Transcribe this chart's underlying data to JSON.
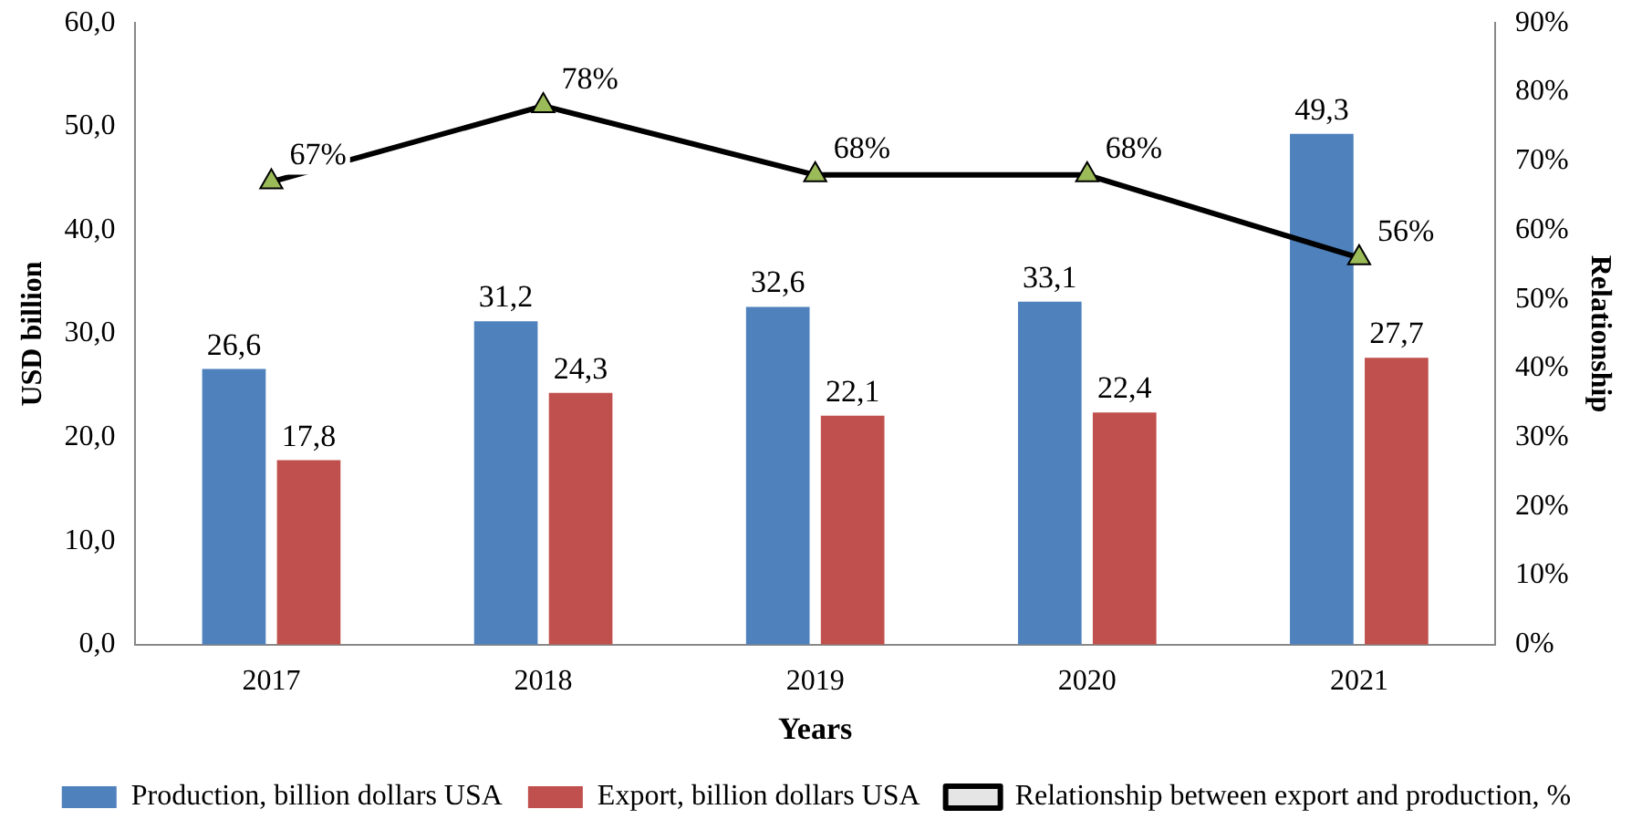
{
  "chart_data": {
    "type": "bar",
    "xlabel": "Years",
    "ylabel": "USD billion",
    "y2label": "Relationship",
    "categories": [
      "2017",
      "2018",
      "2019",
      "2020",
      "2021"
    ],
    "series": [
      {
        "name": "Production, billion dollars USA",
        "color": "#4f81bd",
        "values": [
          26.6,
          31.2,
          32.6,
          33.1,
          49.3
        ],
        "value_labels": [
          "26,6",
          "31,2",
          "32,6",
          "33,1",
          "49,3"
        ]
      },
      {
        "name": "Export, billion dollars USA",
        "color": "#c0504d",
        "values": [
          17.8,
          24.3,
          22.1,
          22.4,
          27.7
        ],
        "value_labels": [
          "17,8",
          "24,3",
          "22,1",
          "22,4",
          "27,7"
        ]
      },
      {
        "name": "Relationship between export and production, %",
        "type": "line",
        "axis": "y2",
        "color": "#000000",
        "marker": "triangle",
        "values": [
          67,
          78,
          68,
          68,
          56
        ],
        "value_labels": [
          "67%",
          "78%",
          "68%",
          "68%",
          "56%"
        ]
      }
    ],
    "ylim": [
      0,
      60
    ],
    "yticks": [
      {
        "value": 0,
        "label": "0,0"
      },
      {
        "value": 10,
        "label": "10,0"
      },
      {
        "value": 20,
        "label": "20,0"
      },
      {
        "value": 30,
        "label": "30,0"
      },
      {
        "value": 40,
        "label": "40,0"
      },
      {
        "value": 50,
        "label": "50,0"
      },
      {
        "value": 60,
        "label": "60,0"
      }
    ],
    "y2lim": [
      0,
      90
    ],
    "y2ticks": [
      {
        "value": 0,
        "label": "0%"
      },
      {
        "value": 10,
        "label": "10%"
      },
      {
        "value": 20,
        "label": "20%"
      },
      {
        "value": 30,
        "label": "30%"
      },
      {
        "value": 40,
        "label": "40%"
      },
      {
        "value": 50,
        "label": "50%"
      },
      {
        "value": 60,
        "label": "60%"
      },
      {
        "value": 70,
        "label": "70%"
      },
      {
        "value": 80,
        "label": "80%"
      },
      {
        "value": 90,
        "label": "90%"
      }
    ],
    "grid": false,
    "legend": "bottom"
  }
}
